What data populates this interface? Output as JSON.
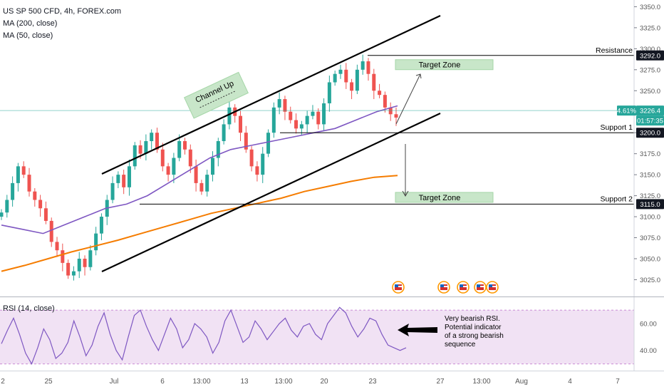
{
  "chart_data": {
    "type": "candlestick",
    "title": "US SP 500 CFD, 4h, FOREX.com",
    "indicators": [
      "MA (200, close)",
      "MA (50, close)"
    ],
    "price_axis": {
      "ticks": [
        3350,
        3325,
        3300,
        3275,
        3250,
        3225,
        3200,
        3175,
        3150,
        3125,
        3100,
        3075,
        3050,
        3025
      ],
      "ylim": [
        3005,
        3358
      ]
    },
    "time_axis": {
      "labels": [
        "2",
        "25",
        "Jul",
        "6",
        "13:00",
        "13",
        "13:00",
        "20",
        "23",
        "27",
        "13:00",
        "Aug",
        "4",
        "7"
      ]
    },
    "price_badges": [
      {
        "label": "3292.0",
        "value": 3292,
        "style": "dark"
      },
      {
        "label": "4.61%",
        "value": 3226.4,
        "style": "green"
      },
      {
        "label": "3226.4",
        "value": 3226.4,
        "style": "green"
      },
      {
        "label": "01:57:35",
        "value": 3220,
        "style": "green"
      },
      {
        "label": "3200.0",
        "value": 3200,
        "style": "dark"
      },
      {
        "label": "3115.0",
        "value": 3115,
        "style": "dark"
      }
    ],
    "levels": [
      {
        "name": "Resistance",
        "value": 3292
      },
      {
        "name": "Support 1",
        "value": 3200
      },
      {
        "name": "Support 2",
        "value": 3115
      }
    ],
    "annotations": [
      {
        "text": "Channel Up"
      },
      {
        "text": "Target Zone",
        "value": 3281
      },
      {
        "text": "Target Zone",
        "value": 3123
      }
    ],
    "close_series": [
      3105,
      3120,
      3140,
      3160,
      3150,
      3130,
      3120,
      3110,
      3095,
      3070,
      3060,
      3045,
      3030,
      3035,
      3050,
      3040,
      3060,
      3080,
      3100,
      3120,
      3140,
      3150,
      3135,
      3160,
      3185,
      3175,
      3190,
      3200,
      3180,
      3160,
      3150,
      3170,
      3190,
      3180,
      3160,
      3140,
      3130,
      3150,
      3170,
      3190,
      3210,
      3230,
      3220,
      3200,
      3180,
      3160,
      3150,
      3175,
      3200,
      3230,
      3240,
      3225,
      3215,
      3205,
      3210,
      3220,
      3225,
      3210,
      3235,
      3260,
      3270,
      3275,
      3260,
      3250,
      3275,
      3285,
      3270,
      3250,
      3245,
      3230,
      3222,
      3218
    ],
    "ma200": [
      3035,
      3042,
      3050,
      3058,
      3065,
      3072,
      3080,
      3088,
      3096,
      3104,
      3110,
      3116,
      3122,
      3130,
      3136,
      3142,
      3147,
      3149
    ],
    "ma50": [
      3090,
      3085,
      3080,
      3090,
      3100,
      3110,
      3115,
      3125,
      3140,
      3155,
      3170,
      3180,
      3185,
      3190,
      3195,
      3200,
      3205,
      3215,
      3225,
      3232
    ],
    "rsi": {
      "label": "RSI (14, close)",
      "ticks": [
        60,
        40
      ],
      "ylim": [
        25,
        78
      ],
      "band": [
        30,
        70
      ],
      "values": [
        45,
        55,
        64,
        52,
        38,
        30,
        42,
        56,
        48,
        34,
        38,
        46,
        62,
        50,
        36,
        44,
        58,
        68,
        52,
        40,
        33,
        50,
        66,
        70,
        58,
        48,
        40,
        52,
        64,
        56,
        42,
        48,
        60,
        56,
        50,
        38,
        46,
        62,
        70,
        58,
        46,
        50,
        62,
        56,
        48,
        54,
        60,
        64,
        55,
        50,
        58,
        60,
        52,
        48,
        60,
        66,
        72,
        68,
        58,
        50,
        56,
        64,
        62,
        52,
        44,
        42,
        40,
        42
      ]
    },
    "note": "Very bearish RSI. Potential indicator of a strong bearish sequence"
  }
}
